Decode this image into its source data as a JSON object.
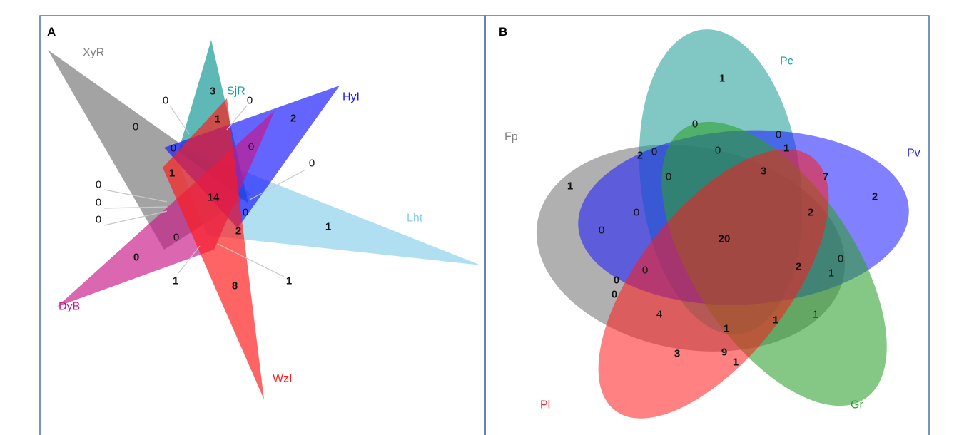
{
  "panels": [
    {
      "letter": "A",
      "sets": [
        {
          "name": "XyR",
          "color": "#808080"
        },
        {
          "name": "SjR",
          "color": "#1a9a96"
        },
        {
          "name": "HyI",
          "color": "#1a1aff"
        },
        {
          "name": "Lht",
          "color": "#87ceeb"
        },
        {
          "name": "DyB",
          "color": "#c71585"
        },
        {
          "name": "WzI",
          "color": "#ff1a1a"
        }
      ],
      "counts": [
        "3",
        "1",
        "0",
        "0",
        "0",
        "2",
        "0",
        "0",
        "0",
        "1",
        "0",
        "14",
        "0",
        "0",
        "0",
        "0",
        "1",
        "2",
        "0",
        "1",
        "1",
        "8",
        "1"
      ]
    },
    {
      "letter": "B",
      "sets": [
        {
          "name": "Fp",
          "color": "#808080"
        },
        {
          "name": "Pc",
          "color": "#1a9a96"
        },
        {
          "name": "Pv",
          "color": "#1a1aff"
        },
        {
          "name": "Pl",
          "color": "#ff1a1a"
        },
        {
          "name": "Gr",
          "color": "#2ca02c"
        }
      ],
      "counts": [
        "1",
        "0",
        "0",
        "1",
        "2",
        "0",
        "0",
        "0",
        "3",
        "7",
        "1",
        "0",
        "2",
        "2",
        "0",
        "20",
        "2",
        "0",
        "0",
        "1",
        "0",
        "0",
        "4",
        "1",
        "1",
        "1",
        "3",
        "9",
        "1"
      ]
    }
  ]
}
